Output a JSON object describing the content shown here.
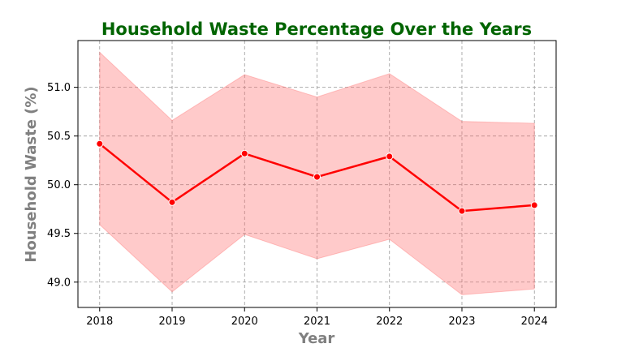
{
  "chart_data": {
    "type": "line",
    "title": "Household Waste Percentage Over the Years",
    "xlabel": "Year",
    "ylabel": "Household Waste (%)",
    "x": [
      2018,
      2019,
      2020,
      2021,
      2022,
      2023,
      2024
    ],
    "x_tick_labels": [
      "2018",
      "2019",
      "2020",
      "2021",
      "2022",
      "2023",
      "2024"
    ],
    "y_ticks": [
      49.0,
      49.5,
      50.0,
      50.5,
      51.0
    ],
    "y_tick_labels": [
      "49.0",
      "49.5",
      "50.0",
      "50.5",
      "51.0"
    ],
    "xlim": [
      2017.7,
      2024.3
    ],
    "ylim": [
      48.74,
      51.48
    ],
    "series": [
      {
        "values": [
          50.42,
          49.82,
          50.32,
          50.08,
          50.29,
          49.73,
          49.79
        ],
        "ci_upper": [
          51.36,
          50.66,
          51.13,
          50.9,
          51.14,
          50.65,
          50.63
        ],
        "ci_lower": [
          49.59,
          48.9,
          49.49,
          49.24,
          49.44,
          48.87,
          48.93
        ]
      }
    ],
    "grid": true,
    "colors": {
      "title": "#006400",
      "axis_label": "#808080",
      "line": "#ff0000",
      "band": "#ff6666",
      "grid": "#999999"
    }
  }
}
